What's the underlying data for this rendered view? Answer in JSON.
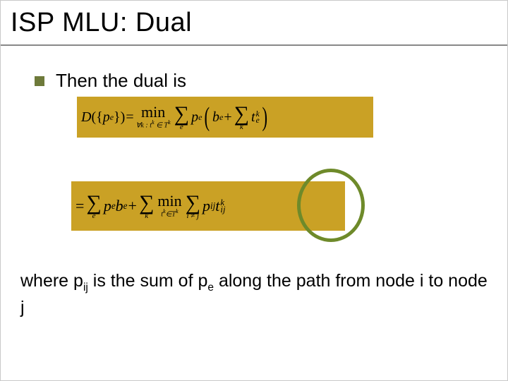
{
  "title": "ISP MLU: Dual",
  "bullet": "Then the dual is",
  "formula1": {
    "background": "#caa125",
    "lhs_D": "D",
    "lbrace": "({",
    "p": "p",
    "e": "e",
    "rbrace": "})",
    "eq": " = ",
    "min": "min",
    "min_sub": "∀k : t",
    "min_sub_sup": "k",
    "min_sub_tail": " ∈ T",
    "sum1_sub": "e",
    "pe": "p",
    "be": "b",
    "plus": " + ",
    "sum2_sub": "k",
    "t": "t",
    "k": "k"
  },
  "formula2": {
    "background": "#caa125",
    "eq": "= ",
    "sum1_sub": "e",
    "p": "p",
    "e": "e",
    "b": "b",
    "plus1": " + ",
    "sum2_sub": "k",
    "min": "min",
    "min_sub_head": "t",
    "min_sub_k": "k",
    "min_sub_in": "∈T",
    "sum3_sub": "i ≠ j",
    "pij": "p",
    "ij": "ij",
    "t": "t",
    "k": "k"
  },
  "ellipse": {
    "stroke": "#6e8a2a",
    "stroke_width": 5
  },
  "footer": {
    "pre": "where p",
    "sub1": "ij",
    "mid": " is the sum of p",
    "sub2": "e",
    "tail": " along the path from node i to node j"
  },
  "style": {
    "title_fontsize": 38,
    "body_fontsize": 26,
    "footer_fontsize": 25,
    "bullet_color": "#6e7a3a",
    "underline_color": "#888888",
    "background": "#ffffff"
  }
}
